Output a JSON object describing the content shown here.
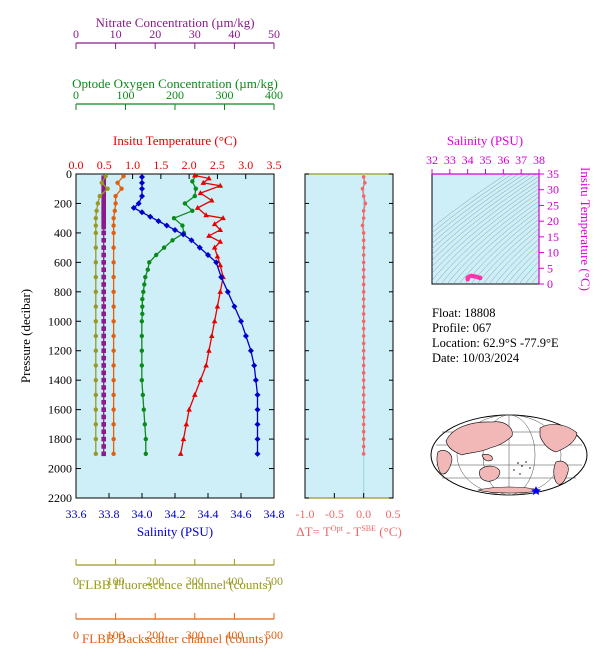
{
  "colors": {
    "nitrate": "#8b1a8b",
    "oxygen": "#0a8a1a",
    "temperature": "#e60000",
    "salinity": "#0000cc",
    "fluorescence": "#999922",
    "backscatter": "#e06010",
    "delta_t": "#f06868",
    "plot_bg": "#cfeff8",
    "ts_axis": "#d400d4",
    "text_accent": "#dd00dd"
  },
  "info": {
    "float": "Float:  18808",
    "profile": "Profile:  067",
    "location": "Location:  62.9°S  -77.9°E",
    "date": "Date:  10/03/2024"
  },
  "map": {
    "icon": "world-map-icon",
    "marker": "float-position-star"
  },
  "chart_data": [
    {
      "type": "line",
      "title": "",
      "ylabel": "Pressure (decibar)",
      "ylim": [
        0,
        2200
      ],
      "y_ticks": [
        0,
        200,
        400,
        600,
        800,
        1000,
        1200,
        1400,
        1600,
        1800,
        2000,
        2200
      ],
      "axes": [
        {
          "key": "nitrate",
          "label": "Nitrate Concentration (µm/kg)",
          "range": [
            0,
            50
          ],
          "ticks": [
            0,
            10,
            20,
            30,
            40,
            50
          ]
        },
        {
          "key": "oxygen",
          "label": "Optode Oxygen Concentration (µm/kg)",
          "range": [
            0,
            400
          ],
          "ticks": [
            0,
            100,
            200,
            300,
            400
          ]
        },
        {
          "key": "temperature",
          "label": "Insitu Temperature (°C)",
          "range": [
            0,
            3.5
          ],
          "ticks": [
            "0.0",
            "0.5",
            "1.0",
            "1.5",
            "2.0",
            "2.5",
            "3.0",
            "3.5"
          ]
        },
        {
          "key": "salinity",
          "label": "Salinity (PSU)",
          "range": [
            33.6,
            34.8
          ],
          "ticks": [
            "33.6",
            "33.8",
            "34.0",
            "34.2",
            "34.4",
            "34.6",
            "34.8"
          ]
        },
        {
          "key": "fluorescence",
          "label": "FLBB Fluorescence channel (counts)",
          "range": [
            0,
            500
          ],
          "ticks": [
            0,
            100,
            200,
            300,
            400,
            500
          ]
        },
        {
          "key": "backscatter",
          "label": "FLBB Backscatter channel (counts)",
          "range": [
            0,
            500
          ],
          "ticks": [
            0,
            100,
            200,
            300,
            400,
            500
          ]
        }
      ],
      "series": [
        {
          "key": "nitrate",
          "marker": "square",
          "points": [
            [
              7,
              25
            ],
            [
              7,
              40
            ],
            [
              7,
              60
            ],
            [
              7,
              80
            ],
            [
              7,
              100
            ],
            [
              7,
              120
            ],
            [
              7,
              150
            ],
            [
              7,
              180
            ],
            [
              7,
              200
            ],
            [
              7,
              220
            ],
            [
              7,
              240
            ],
            [
              7,
              260
            ],
            [
              7,
              280
            ],
            [
              7,
              300
            ],
            [
              7,
              320
            ],
            [
              7,
              340
            ],
            [
              7,
              360
            ],
            [
              7,
              400
            ],
            [
              7,
              450
            ],
            [
              7,
              500
            ],
            [
              7,
              550
            ],
            [
              7,
              600
            ],
            [
              7,
              650
            ],
            [
              7,
              700
            ],
            [
              7,
              750
            ],
            [
              7,
              800
            ],
            [
              7,
              850
            ],
            [
              7,
              900
            ],
            [
              7,
              950
            ],
            [
              7,
              1000
            ],
            [
              7,
              1050
            ],
            [
              7,
              1100
            ],
            [
              7,
              1150
            ],
            [
              7,
              1200
            ],
            [
              7,
              1250
            ],
            [
              7,
              1300
            ],
            [
              7,
              1350
            ],
            [
              7,
              1400
            ],
            [
              7,
              1450
            ],
            [
              7,
              1500
            ],
            [
              7,
              1550
            ],
            [
              7,
              1600
            ],
            [
              7,
              1650
            ],
            [
              7,
              1700
            ],
            [
              7,
              1750
            ],
            [
              7,
              1800
            ],
            [
              7,
              1850
            ],
            [
              7,
              1900
            ]
          ]
        },
        {
          "key": "oxygen",
          "marker": "circle",
          "points": [
            [
              242,
              10
            ],
            [
              235,
              50
            ],
            [
              242,
              100
            ],
            [
              240,
              150
            ],
            [
              220,
              200
            ],
            [
              235,
              250
            ],
            [
              198,
              300
            ],
            [
              215,
              350
            ],
            [
              218,
              400
            ],
            [
              195,
              450
            ],
            [
              178,
              500
            ],
            [
              162,
              550
            ],
            [
              148,
              600
            ],
            [
              145,
              650
            ],
            [
              140,
              700
            ],
            [
              138,
              750
            ],
            [
              136,
              800
            ],
            [
              134,
              850
            ],
            [
              134,
              900
            ],
            [
              134,
              950
            ],
            [
              133,
              1000
            ],
            [
              133,
              1100
            ],
            [
              133,
              1200
            ],
            [
              133,
              1300
            ],
            [
              133,
              1400
            ],
            [
              135,
              1500
            ],
            [
              137,
              1600
            ],
            [
              139,
              1700
            ],
            [
              141,
              1800
            ],
            [
              141,
              1900
            ]
          ]
        },
        {
          "key": "temperature",
          "marker": "triangle",
          "points": [
            [
              2.1,
              10
            ],
            [
              2.35,
              30
            ],
            [
              2.25,
              60
            ],
            [
              2.55,
              80
            ],
            [
              2.2,
              130
            ],
            [
              2.4,
              180
            ],
            [
              2.15,
              230
            ],
            [
              2.3,
              280
            ],
            [
              2.6,
              300
            ],
            [
              2.45,
              340
            ],
            [
              2.55,
              380
            ],
            [
              2.35,
              420
            ],
            [
              2.55,
              460
            ],
            [
              2.45,
              500
            ],
            [
              2.5,
              560
            ],
            [
              2.55,
              620
            ],
            [
              2.6,
              700
            ],
            [
              2.55,
              800
            ],
            [
              2.5,
              900
            ],
            [
              2.45,
              1000
            ],
            [
              2.4,
              1100
            ],
            [
              2.35,
              1200
            ],
            [
              2.3,
              1300
            ],
            [
              2.2,
              1400
            ],
            [
              2.1,
              1500
            ],
            [
              2.0,
              1600
            ],
            [
              1.95,
              1700
            ],
            [
              1.9,
              1800
            ],
            [
              1.85,
              1900
            ]
          ]
        },
        {
          "key": "salinity",
          "marker": "diamond",
          "points": [
            [
              34.0,
              20
            ],
            [
              34.0,
              60
            ],
            [
              34.0,
              100
            ],
            [
              34.0,
              150
            ],
            [
              33.98,
              200
            ],
            [
              33.95,
              230
            ],
            [
              34.0,
              260
            ],
            [
              34.05,
              290
            ],
            [
              34.1,
              320
            ],
            [
              34.15,
              350
            ],
            [
              34.2,
              380
            ],
            [
              34.25,
              410
            ],
            [
              34.3,
              450
            ],
            [
              34.35,
              500
            ],
            [
              34.4,
              550
            ],
            [
              34.45,
              600
            ],
            [
              34.48,
              700
            ],
            [
              34.52,
              800
            ],
            [
              34.56,
              900
            ],
            [
              34.6,
              1000
            ],
            [
              34.63,
              1100
            ],
            [
              34.66,
              1200
            ],
            [
              34.68,
              1300
            ],
            [
              34.69,
              1400
            ],
            [
              34.7,
              1500
            ],
            [
              34.7,
              1600
            ],
            [
              34.7,
              1700
            ],
            [
              34.7,
              1800
            ],
            [
              34.7,
              1900
            ]
          ]
        },
        {
          "key": "fluorescence",
          "marker": "circle",
          "points": [
            [
              75,
              15
            ],
            [
              65,
              60
            ],
            [
              80,
              100
            ],
            [
              60,
              150
            ],
            [
              55,
              200
            ],
            [
              52,
              250
            ],
            [
              50,
              300
            ],
            [
              50,
              350
            ],
            [
              50,
              400
            ],
            [
              50,
              500
            ],
            [
              50,
              600
            ],
            [
              50,
              700
            ],
            [
              50,
              800
            ],
            [
              50,
              900
            ],
            [
              50,
              1000
            ],
            [
              50,
              1100
            ],
            [
              50,
              1200
            ],
            [
              50,
              1300
            ],
            [
              50,
              1400
            ],
            [
              50,
              1500
            ],
            [
              50,
              1600
            ],
            [
              50,
              1700
            ],
            [
              50,
              1800
            ],
            [
              50,
              1900
            ]
          ]
        },
        {
          "key": "backscatter",
          "marker": "circle",
          "points": [
            [
              120,
              15
            ],
            [
              105,
              60
            ],
            [
              115,
              100
            ],
            [
              100,
              150
            ],
            [
              100,
              200
            ],
            [
              98,
              250
            ],
            [
              95,
              300
            ],
            [
              95,
              350
            ],
            [
              95,
              400
            ],
            [
              95,
              500
            ],
            [
              95,
              600
            ],
            [
              95,
              700
            ],
            [
              95,
              800
            ],
            [
              95,
              900
            ],
            [
              95,
              1000
            ],
            [
              95,
              1100
            ],
            [
              95,
              1200
            ],
            [
              95,
              1300
            ],
            [
              95,
              1400
            ],
            [
              95,
              1500
            ],
            [
              95,
              1600
            ],
            [
              95,
              1700
            ],
            [
              95,
              1800
            ],
            [
              95,
              1900
            ]
          ]
        }
      ]
    },
    {
      "type": "line",
      "title": "",
      "xlabel_main": "ΔT= T",
      "xlabel_sup1": "Opt",
      "xlabel_mid": " - T",
      "xlabel_sup2": "SBE",
      "xlabel_unit": " (°C)",
      "xlim": [
        -1.0,
        0.5
      ],
      "ylim": [
        0,
        2200
      ],
      "x_ticks": [
        "-1.0",
        "-0.5",
        "0.0",
        "0.5"
      ],
      "series": [
        {
          "key": "delta_t",
          "points": [
            [
              0.0,
              20
            ],
            [
              0.02,
              60
            ],
            [
              -0.02,
              100
            ],
            [
              0.0,
              150
            ],
            [
              0.03,
              200
            ],
            [
              0.0,
              250
            ],
            [
              0.0,
              300
            ],
            [
              -0.02,
              350
            ],
            [
              0.0,
              400
            ],
            [
              0.0,
              450
            ],
            [
              0.0,
              500
            ],
            [
              0.0,
              550
            ],
            [
              0.0,
              600
            ],
            [
              0.0,
              650
            ],
            [
              0.0,
              700
            ],
            [
              0.0,
              750
            ],
            [
              0.0,
              800
            ],
            [
              0.0,
              850
            ],
            [
              0.0,
              900
            ],
            [
              0.0,
              950
            ],
            [
              0.0,
              1000
            ],
            [
              0.0,
              1050
            ],
            [
              0.0,
              1100
            ],
            [
              0.0,
              1150
            ],
            [
              0.0,
              1200
            ],
            [
              0.0,
              1250
            ],
            [
              0.0,
              1300
            ],
            [
              0.0,
              1350
            ],
            [
              0.0,
              1400
            ],
            [
              0.0,
              1450
            ],
            [
              0.0,
              1500
            ],
            [
              0.0,
              1550
            ],
            [
              0.0,
              1600
            ],
            [
              0.0,
              1650
            ],
            [
              0.0,
              1700
            ],
            [
              0.0,
              1750
            ],
            [
              0.0,
              1800
            ],
            [
              0.0,
              1850
            ],
            [
              0.0,
              1900
            ]
          ]
        }
      ]
    },
    {
      "type": "scatter",
      "title": "",
      "xlabel": "Salinity (PSU)",
      "ylabel": "Insitu Temperature (°C)",
      "xlim": [
        32,
        38
      ],
      "ylim": [
        0,
        35
      ],
      "x_ticks": [
        "32",
        "33",
        "34",
        "35",
        "36",
        "37",
        "38"
      ],
      "y_ticks": [
        "0",
        "5",
        "10",
        "15",
        "20",
        "25",
        "30",
        "35"
      ],
      "grid": "density contours",
      "points": [
        [
          34.0,
          1.5
        ],
        [
          34.0,
          2.0
        ],
        [
          34.1,
          2.4
        ],
        [
          34.2,
          2.6
        ],
        [
          34.3,
          2.5
        ],
        [
          34.4,
          2.4
        ],
        [
          34.5,
          2.3
        ],
        [
          34.6,
          2.1
        ],
        [
          34.7,
          2.0
        ],
        [
          34.7,
          1.9
        ]
      ]
    }
  ]
}
